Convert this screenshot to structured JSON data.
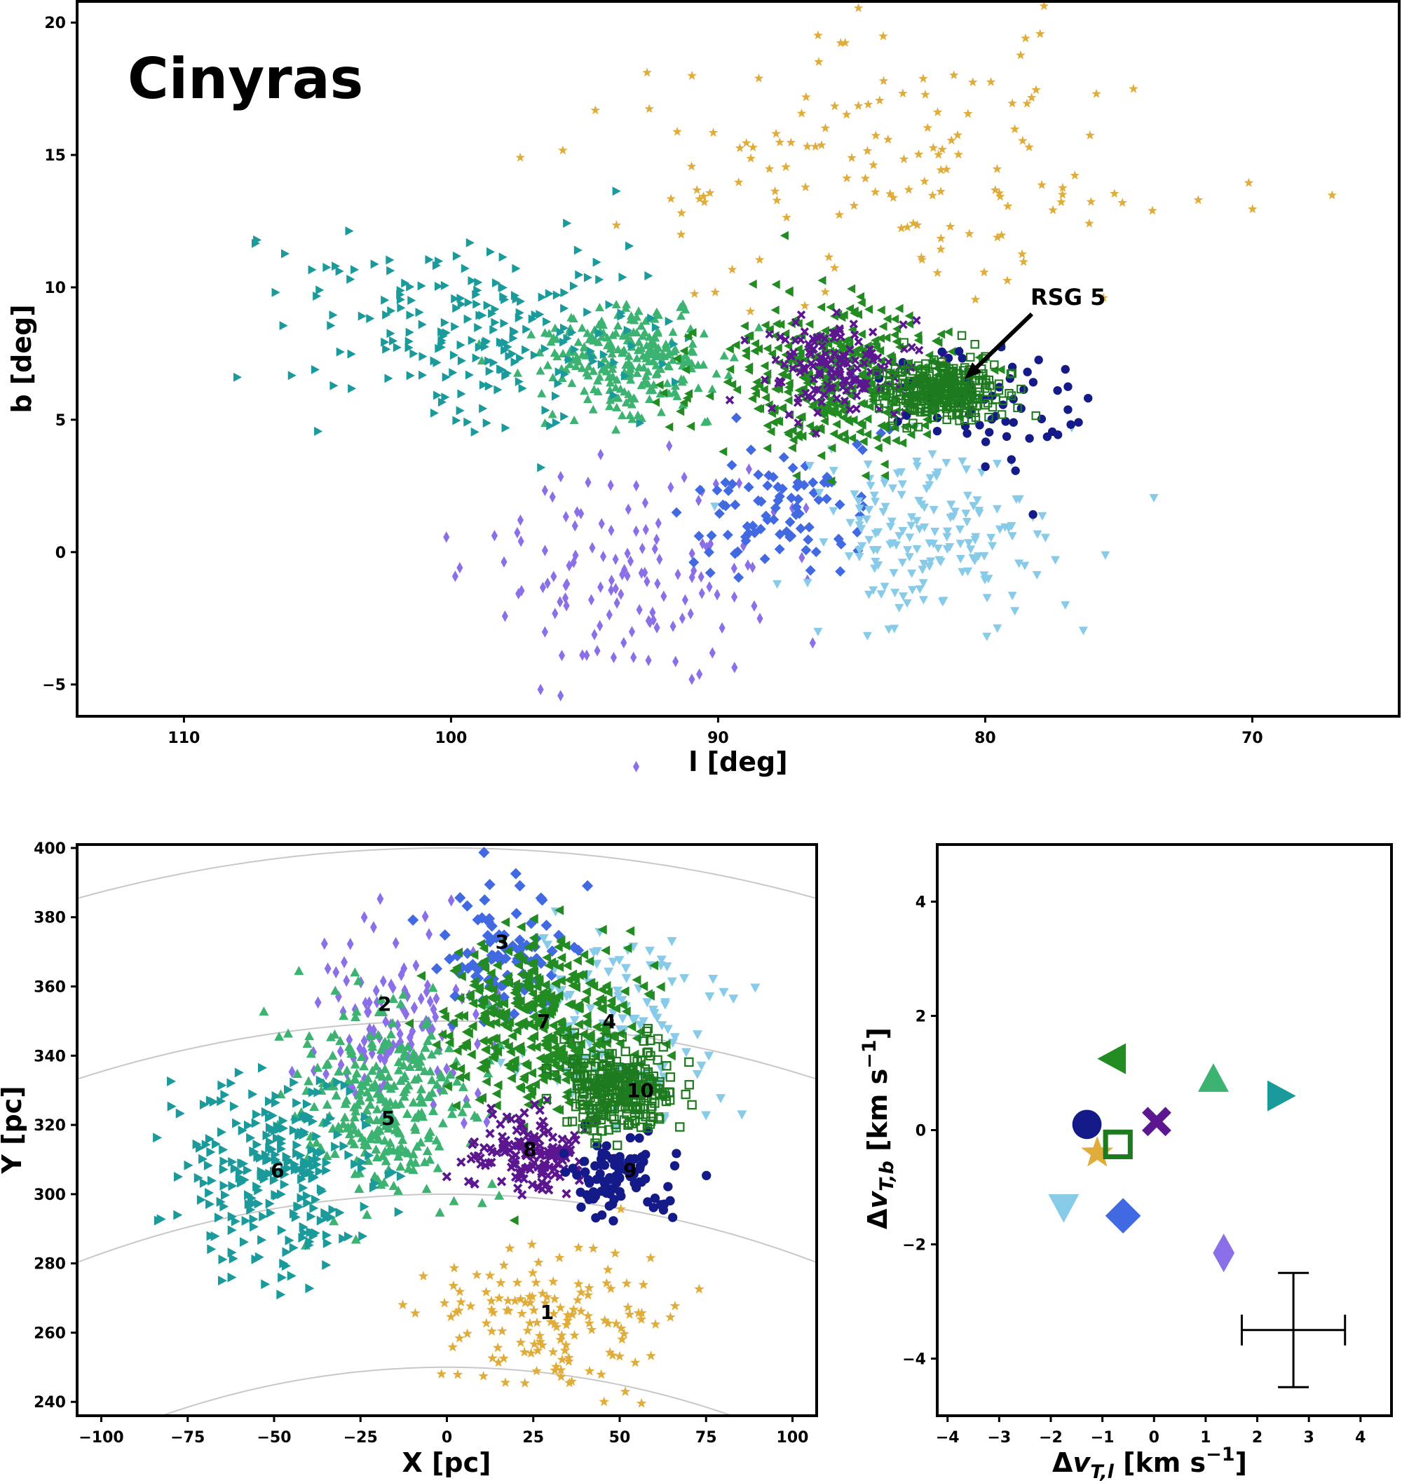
{
  "figure": {
    "title": "Cinyras",
    "annotation": "RSG 5"
  },
  "colors": {
    "1": "#e0ac3a",
    "2": "#8b6fe8",
    "3": "#4169e1",
    "4": "#87cbe8",
    "5": "#3cb371",
    "6": "#1a9a9a",
    "7": "#228b22",
    "8": "#5b1690",
    "9": "#141a87",
    "10": "#1e7a1e"
  },
  "markers": {
    "1": "star",
    "2": "thin-diamond",
    "3": "diamond",
    "4": "triangle-down",
    "5": "triangle-up",
    "6": "triangle-right",
    "7": "triangle-left",
    "8": "x-cross",
    "9": "circle",
    "10": "open-square"
  },
  "chart_data": [
    {
      "id": "sky",
      "type": "scatter",
      "xlabel": "l [deg]",
      "ylabel": "b [deg]",
      "xlim": [
        114,
        64.5
      ],
      "ylim": [
        -6.2,
        20.8
      ],
      "xticks": [
        110,
        100,
        90,
        80,
        70
      ],
      "yticks": [
        -5,
        0,
        5,
        10,
        15,
        20
      ],
      "series": [
        {
          "name": "1",
          "n": 150,
          "center": [
            83.5,
            14.5
          ],
          "spread": [
            6.0,
            2.6
          ]
        },
        {
          "name": "2",
          "n": 130,
          "center": [
            93.5,
            -1.0
          ],
          "spread": [
            2.8,
            2.2
          ]
        },
        {
          "name": "3",
          "n": 90,
          "center": [
            87.5,
            1.6
          ],
          "spread": [
            1.7,
            1.4
          ]
        },
        {
          "name": "4",
          "n": 170,
          "center": [
            82.0,
            0.5
          ],
          "spread": [
            2.5,
            1.7
          ]
        },
        {
          "name": "5",
          "n": 260,
          "center": [
            93.5,
            7.3
          ],
          "spread": [
            1.6,
            1.0
          ]
        },
        {
          "name": "6",
          "n": 220,
          "center": [
            98.5,
            8.3
          ],
          "spread": [
            3.5,
            1.7
          ]
        },
        {
          "name": "7",
          "n": 420,
          "center": [
            85.5,
            6.6
          ],
          "spread": [
            2.3,
            1.4
          ]
        },
        {
          "name": "8",
          "n": 150,
          "center": [
            85.5,
            7.0
          ],
          "spread": [
            1.4,
            1.0
          ]
        },
        {
          "name": "9",
          "n": 60,
          "center": [
            80.0,
            5.5
          ],
          "spread": [
            1.6,
            1.2
          ]
        },
        {
          "name": "10",
          "n": 300,
          "center": [
            81.5,
            6.1
          ],
          "spread": [
            1.1,
            0.55
          ]
        }
      ]
    },
    {
      "id": "xy",
      "type": "scatter",
      "xlabel": "X [pc]",
      "ylabel": "Y [pc]",
      "xlim": [
        -107,
        107
      ],
      "ylim": [
        236,
        401
      ],
      "xticks": [
        -100,
        -75,
        -50,
        -25,
        0,
        25,
        50,
        75,
        100
      ],
      "yticks": [
        240,
        260,
        280,
        300,
        320,
        340,
        360,
        380,
        400
      ],
      "distance_arcs_pc": [
        250,
        300,
        350,
        400
      ],
      "cluster_labels": [
        {
          "name": "1",
          "x": 29,
          "y": 266
        },
        {
          "name": "2",
          "x": -18,
          "y": 355
        },
        {
          "name": "3",
          "x": 16,
          "y": 373
        },
        {
          "name": "4",
          "x": 47,
          "y": 350
        },
        {
          "name": "5",
          "x": -17,
          "y": 322
        },
        {
          "name": "6",
          "x": -49,
          "y": 307
        },
        {
          "name": "7",
          "x": 28,
          "y": 350
        },
        {
          "name": "8",
          "x": 24,
          "y": 313
        },
        {
          "name": "9",
          "x": 53,
          "y": 307
        },
        {
          "name": "10",
          "x": 56,
          "y": 330
        }
      ],
      "series": [
        {
          "name": "1",
          "n": 140,
          "center": [
            30,
            265
          ],
          "spread": [
            18,
            11
          ]
        },
        {
          "name": "2",
          "n": 120,
          "center": [
            -15,
            350
          ],
          "spread": [
            13,
            13
          ]
        },
        {
          "name": "3",
          "n": 90,
          "center": [
            18,
            370
          ],
          "spread": [
            10,
            10
          ]
        },
        {
          "name": "4",
          "n": 120,
          "center": [
            50,
            350
          ],
          "spread": [
            13,
            13
          ]
        },
        {
          "name": "5",
          "n": 300,
          "center": [
            -18,
            325
          ],
          "spread": [
            12,
            14
          ]
        },
        {
          "name": "6",
          "n": 260,
          "center": [
            -48,
            305
          ],
          "spread": [
            14,
            14
          ]
        },
        {
          "name": "7",
          "n": 400,
          "center": [
            27,
            350
          ],
          "spread": [
            13,
            12
          ]
        },
        {
          "name": "8",
          "n": 150,
          "center": [
            24,
            312
          ],
          "spread": [
            8,
            6
          ]
        },
        {
          "name": "9",
          "n": 90,
          "center": [
            50,
            305
          ],
          "spread": [
            8,
            6
          ]
        },
        {
          "name": "10",
          "n": 300,
          "center": [
            50,
            330
          ],
          "spread": [
            8,
            6
          ]
        }
      ]
    },
    {
      "id": "velocity",
      "type": "scatter",
      "xlabel": "Δv_T,l [km s^-1]",
      "ylabel": "Δv_T,b [km s^-1]",
      "xlim": [
        -4.2,
        4.6
      ],
      "ylim": [
        -5.0,
        5.0
      ],
      "xticks": [
        -4,
        -3,
        -2,
        -1,
        0,
        1,
        2,
        3,
        4
      ],
      "yticks": [
        -4,
        -2,
        0,
        2,
        4
      ],
      "points": [
        {
          "name": "1",
          "x": -1.1,
          "y": -0.4
        },
        {
          "name": "2",
          "x": 1.35,
          "y": -2.15
        },
        {
          "name": "3",
          "x": -0.6,
          "y": -1.5
        },
        {
          "name": "4",
          "x": -1.75,
          "y": -1.35
        },
        {
          "name": "5",
          "x": 1.15,
          "y": 0.9
        },
        {
          "name": "6",
          "x": 2.45,
          "y": 0.6
        },
        {
          "name": "7",
          "x": -0.8,
          "y": 1.25
        },
        {
          "name": "8",
          "x": 0.05,
          "y": 0.15
        },
        {
          "name": "9",
          "x": -1.3,
          "y": 0.1
        },
        {
          "name": "10",
          "x": -0.7,
          "y": -0.25
        }
      ],
      "error_bar": {
        "x": 2.7,
        "y": -3.5,
        "xerr": 1.0,
        "yerr": 1.0
      }
    }
  ]
}
